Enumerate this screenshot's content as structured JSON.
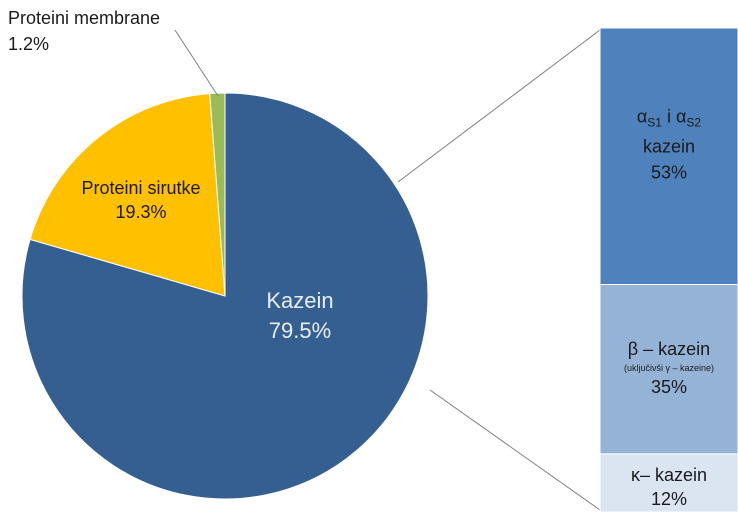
{
  "chart_data": {
    "type": "pie",
    "series": [
      {
        "labels": [
          "Kazein",
          "Proteini sirutke",
          "Proteini membrane"
        ],
        "values": [
          79.5,
          19.3,
          1.2
        ],
        "value_labels": [
          "79.5%",
          "19.3%",
          "1.2%"
        ],
        "colors": [
          "#365f91",
          "#ffc000",
          "#9bbb59"
        ]
      }
    ],
    "breakdown": {
      "of": "Kazein",
      "type": "stacked-bar",
      "items": [
        {
          "label_lines": [
            "α",
            "S1",
            " i α",
            "S2",
            "kazein"
          ],
          "value": 53,
          "value_label": "53%",
          "color": "#4f81bd"
        },
        {
          "label_lines": [
            "β – kazein",
            "(uključivši γ – kazeine)"
          ],
          "value": 35,
          "value_label": "35%",
          "color": "#95b3d7"
        },
        {
          "label_lines": [
            "κ– kazein"
          ],
          "value": 12,
          "value_label": "12%",
          "color": "#dbe5f1"
        }
      ]
    }
  }
}
